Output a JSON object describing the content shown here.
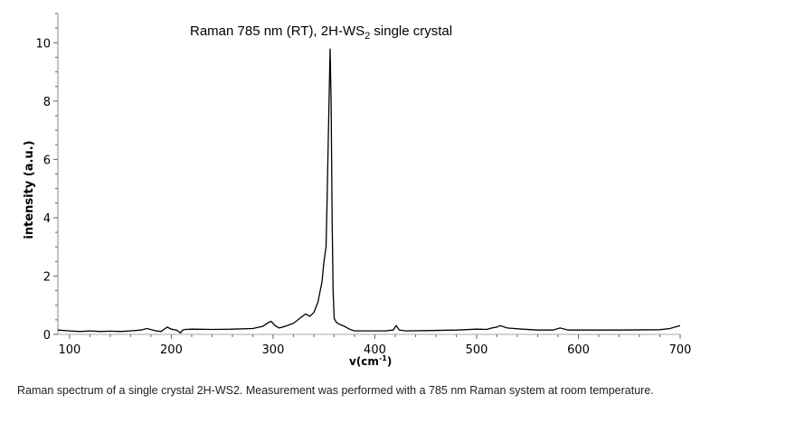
{
  "chart_data": {
    "type": "line",
    "title": "Raman 785 nm (RT), 2H-WS",
    "title_sub": "2",
    "title_end": " single crystal",
    "xlabel": "v(cm",
    "xlabel_sup": "-1",
    "xlabel_end": ")",
    "ylabel": "intensity (a.u.)",
    "xlim": [
      88.5,
      700
    ],
    "ylim": [
      0,
      11
    ],
    "xticks": [
      100,
      200,
      300,
      400,
      500,
      600,
      700
    ],
    "yticks": [
      0,
      2,
      4,
      6,
      8,
      10
    ],
    "grid": false,
    "series": [
      {
        "name": "2H-WS2",
        "x": [
          88.5,
          100,
          110,
          120,
          130,
          140,
          150,
          160,
          170,
          176,
          185,
          190,
          196,
          200,
          205,
          209,
          211,
          214,
          220,
          240,
          260,
          280,
          290,
          295,
          298,
          302,
          306,
          312,
          320,
          328,
          332,
          336,
          340,
          344,
          348,
          350,
          352,
          353,
          355,
          356,
          357,
          358,
          359,
          360,
          362,
          365,
          370,
          375,
          380,
          390,
          400,
          410,
          418,
          421,
          424,
          430,
          450,
          480,
          500,
          510,
          515,
          520,
          523,
          530,
          545,
          560,
          575,
          582,
          590,
          600,
          640,
          680,
          690,
          700
        ],
        "y": [
          0.15,
          0.12,
          0.1,
          0.12,
          0.1,
          0.11,
          0.1,
          0.12,
          0.15,
          0.2,
          0.12,
          0.1,
          0.25,
          0.18,
          0.15,
          0.05,
          0.15,
          0.17,
          0.18,
          0.17,
          0.18,
          0.2,
          0.28,
          0.4,
          0.45,
          0.3,
          0.22,
          0.28,
          0.38,
          0.6,
          0.7,
          0.62,
          0.75,
          1.1,
          1.8,
          2.5,
          3.0,
          4.5,
          8.0,
          9.8,
          8.0,
          4.0,
          1.5,
          0.55,
          0.42,
          0.35,
          0.28,
          0.18,
          0.12,
          0.12,
          0.12,
          0.12,
          0.15,
          0.3,
          0.15,
          0.12,
          0.13,
          0.15,
          0.18,
          0.17,
          0.22,
          0.25,
          0.3,
          0.22,
          0.18,
          0.15,
          0.15,
          0.22,
          0.15,
          0.15,
          0.15,
          0.16,
          0.2,
          0.3
        ]
      }
    ]
  },
  "caption": "Raman spectrum of a single crystal 2H-WS2. Measurement was performed with a 785 nm Raman system at room temperature."
}
